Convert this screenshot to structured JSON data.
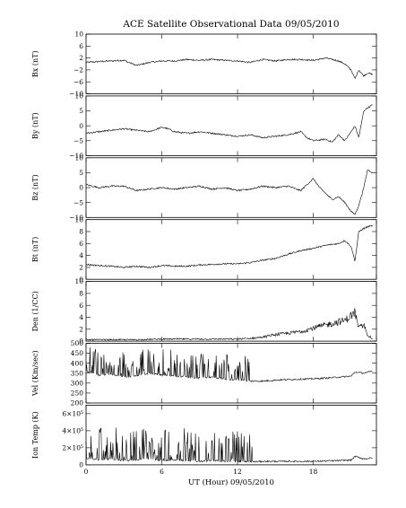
{
  "chart_data": {
    "type": "line",
    "title": "ACE Satellite Observational Data   09/05/2010",
    "xlabel": "UT (Hour)  09/05/2010",
    "xlim": [
      0,
      23
    ],
    "xticks": [
      0,
      6,
      12,
      18
    ],
    "panels": [
      {
        "ylabel": "Bx (nT)",
        "ylim": [
          -10,
          10
        ],
        "yticks": [
          10,
          6,
          2,
          -2,
          -6,
          -10
        ],
        "ytick_labels": [
          "10",
          "6",
          "2",
          "−2",
          "−6",
          "−10"
        ],
        "x": [
          0,
          1,
          2,
          3,
          4,
          5,
          6,
          7,
          8,
          9,
          10,
          11,
          12,
          13,
          14,
          15,
          16,
          17,
          18,
          19,
          20,
          20.5,
          21,
          21.3,
          21.6,
          22,
          22.3,
          22.7
        ],
        "y": [
          0.5,
          0.8,
          1.0,
          1.2,
          -0.5,
          0.5,
          1.0,
          1.0,
          1.5,
          1.2,
          1.5,
          1.2,
          1.0,
          0.5,
          1.5,
          1.0,
          1.5,
          1.5,
          1.2,
          2.0,
          1.0,
          0.0,
          -2.0,
          -5.0,
          -2.0,
          -4.0,
          -3.0,
          -3.5
        ]
      },
      {
        "ylabel": "By (nT)",
        "ylim": [
          -10,
          10
        ],
        "yticks": [
          10,
          5,
          0,
          -5,
          -10
        ],
        "ytick_labels": [
          "10",
          "5",
          "0",
          "−5",
          "−10"
        ],
        "x": [
          0,
          1,
          2,
          3,
          4,
          5,
          6,
          6.5,
          7,
          8,
          9,
          10,
          11,
          12,
          13,
          14,
          15,
          16,
          17,
          17.5,
          18,
          19,
          19.5,
          20,
          20.5,
          21,
          21.3,
          21.6,
          22,
          22.3,
          22.7
        ],
        "y": [
          -2.5,
          -2.0,
          -1.5,
          -1.0,
          -1.5,
          -2.0,
          -0.5,
          -1.0,
          -2.0,
          -2.5,
          -2.0,
          -2.5,
          -3.0,
          -3.5,
          -3.0,
          -4.0,
          -3.5,
          -3.0,
          -2.0,
          -4.0,
          -5.0,
          -4.5,
          -5.5,
          -3.0,
          -5.0,
          -2.0,
          0.0,
          -4.0,
          5.0,
          6.0,
          7.0
        ]
      },
      {
        "ylabel": "Bz (nT)",
        "ylim": [
          -10,
          10
        ],
        "yticks": [
          10,
          5,
          0,
          -5,
          -10
        ],
        "ytick_labels": [
          "10",
          "5",
          "0",
          "−5",
          "−10"
        ],
        "x": [
          0,
          1,
          2,
          3,
          4,
          5,
          6,
          7,
          8,
          9,
          10,
          11,
          12,
          13,
          14,
          15,
          16,
          17,
          18,
          18.5,
          19,
          19.5,
          20,
          20.5,
          21,
          21.3,
          21.6,
          22,
          22.3,
          22.7
        ],
        "y": [
          1.0,
          0.0,
          0.5,
          0.5,
          -1.0,
          -0.5,
          0.0,
          -0.5,
          0.0,
          0.5,
          -0.5,
          0.0,
          -1.0,
          -0.5,
          0.5,
          0.0,
          0.5,
          -1.0,
          3.0,
          0.0,
          -2.0,
          -4.0,
          -3.0,
          -5.0,
          -8.0,
          -9.0,
          -6.0,
          0.0,
          6.0,
          5.0
        ]
      },
      {
        "ylabel": "Bt (nT)",
        "ylim": [
          0,
          10
        ],
        "yticks": [
          10,
          8,
          6,
          4,
          2,
          0
        ],
        "ytick_labels": [
          "10",
          "8",
          "6",
          "4",
          "2",
          "0"
        ],
        "x": [
          0,
          1,
          2,
          3,
          4,
          5,
          6,
          7,
          8,
          9,
          10,
          11,
          12,
          13,
          14,
          15,
          16,
          17,
          18,
          19,
          20,
          20.5,
          21,
          21.3,
          21.6,
          22,
          22.3,
          22.7
        ],
        "y": [
          2.5,
          2.3,
          2.2,
          2.0,
          2.2,
          2.0,
          2.3,
          2.2,
          2.2,
          2.4,
          2.5,
          2.6,
          2.6,
          2.8,
          3.2,
          3.5,
          4.2,
          4.8,
          5.2,
          5.7,
          6.0,
          6.5,
          5.5,
          3.0,
          8.0,
          8.5,
          8.8,
          9.0
        ]
      },
      {
        "ylabel": "Den (1/CC)",
        "ylim": [
          0,
          10
        ],
        "yticks": [
          10,
          8,
          6,
          4,
          2,
          0
        ],
        "ytick_labels": [
          "10",
          "8",
          "6",
          "4",
          "2",
          "0"
        ],
        "x": [
          0,
          2,
          4,
          6,
          8,
          10,
          12,
          13,
          14,
          15,
          16,
          17,
          18,
          19,
          20,
          20.5,
          21,
          21.3,
          21.6,
          22,
          22.3,
          22.7
        ],
        "y": [
          0.2,
          0.2,
          0.2,
          0.3,
          0.3,
          0.3,
          0.3,
          0.4,
          0.6,
          1.0,
          1.2,
          1.5,
          2.0,
          2.5,
          3.0,
          3.2,
          4.0,
          4.5,
          2.0,
          2.5,
          1.0,
          0.3
        ]
      },
      {
        "ylabel": "Vel (Km/sec)",
        "ylim": [
          200,
          500
        ],
        "yticks": [
          500,
          450,
          400,
          350,
          300,
          250,
          200
        ],
        "ytick_labels": [
          "500",
          "450",
          "400",
          "350",
          "300",
          "250",
          "200"
        ],
        "x": [
          0,
          1,
          2,
          3,
          4,
          5,
          6,
          7,
          8,
          9,
          10,
          11,
          12,
          13,
          14,
          15,
          16,
          17,
          18,
          19,
          20,
          21,
          21.3,
          22,
          22.7
        ],
        "y": [
          360,
          340,
          345,
          330,
          335,
          350,
          340,
          335,
          330,
          325,
          330,
          320,
          315,
          310,
          310,
          315,
          318,
          320,
          322,
          325,
          330,
          335,
          355,
          350,
          360
        ]
      },
      {
        "ylabel": "Ion Temp (K)",
        "ylim": [
          0,
          700000
        ],
        "yticks": [
          600000,
          400000,
          200000,
          0
        ],
        "ytick_labels": [
          "6×10⁵",
          "4×10⁵",
          "2×10⁵",
          "0"
        ],
        "x": [
          0,
          1,
          2,
          3,
          4,
          5,
          6,
          7,
          8,
          9,
          10,
          11,
          12,
          13,
          14,
          15,
          16,
          17,
          18,
          19,
          20,
          21,
          21.3,
          22,
          22.7
        ],
        "y": [
          80000,
          60000,
          70000,
          50000,
          60000,
          70000,
          50000,
          60000,
          50000,
          40000,
          50000,
          40000,
          40000,
          35000,
          40000,
          40000,
          42000,
          40000,
          42000,
          45000,
          50000,
          55000,
          100000,
          70000,
          80000
        ]
      }
    ]
  }
}
